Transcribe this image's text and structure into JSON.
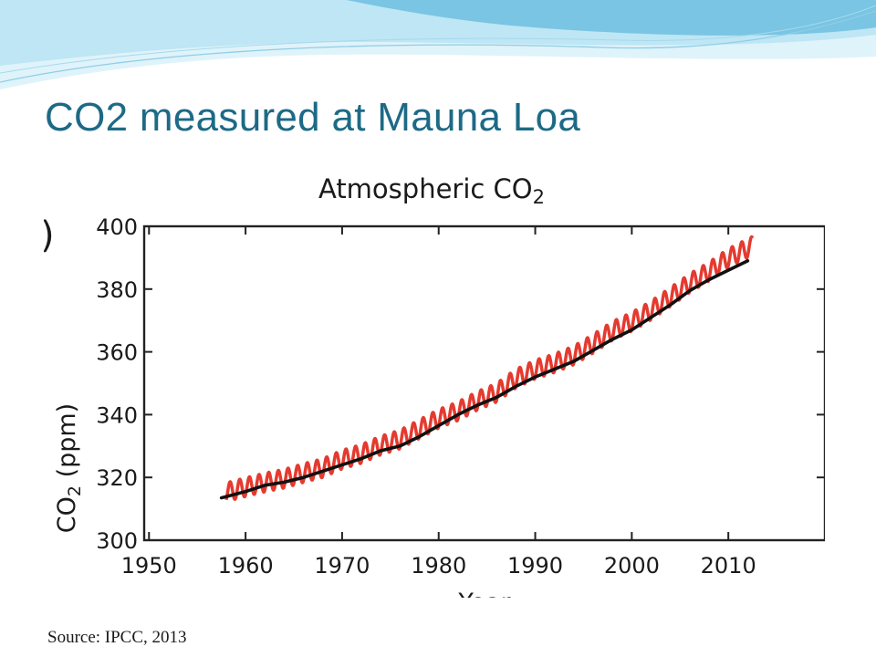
{
  "slide": {
    "title": "CO2 measured at Mauna Loa",
    "source": "Source: IPCC, 2013"
  },
  "colors": {
    "title": "#1d6a86",
    "wave_light": "#b9e3f2",
    "wave_mid": "#62b9dd",
    "monthly_series": "#e53a2f",
    "annual_series": "#111111"
  },
  "chart_data": {
    "type": "line",
    "title": "Atmospheric CO",
    "title_subscript": "2",
    "ylabel": "CO",
    "ylabel_subscript": "2",
    "ylabel_unit": " (ppm)",
    "xlabel": "Year",
    "panel_marker": ")",
    "xlim": [
      1950,
      2020
    ],
    "ylim": [
      300,
      400
    ],
    "x_ticks": [
      "1950",
      "1960",
      "1970",
      "1980",
      "1990",
      "2000",
      "2010"
    ],
    "y_ticks": [
      "300",
      "320",
      "340",
      "360",
      "380",
      "400"
    ],
    "grid": false,
    "series": [
      {
        "kind": "monthly",
        "color": "#e53a2f",
        "x": [
          1958,
          1960,
          1962,
          1964,
          1966,
          1968,
          1970,
          1972,
          1974,
          1976,
          1978,
          1980,
          1982,
          1984,
          1986,
          1988,
          1990,
          1992,
          1994,
          1996,
          1998,
          2000,
          2002,
          2004,
          2006,
          2008,
          2010,
          2012.5
        ],
        "values": [
          315.3,
          316.9,
          318.4,
          319.6,
          321.4,
          323.0,
          325.7,
          327.5,
          330.2,
          332.1,
          335.4,
          338.7,
          341.1,
          344.4,
          347.0,
          351.5,
          354.4,
          356.4,
          358.9,
          362.6,
          366.7,
          369.6,
          373.2,
          377.5,
          381.9,
          385.6,
          389.9,
          393.8
        ],
        "seasonal_amplitude_ppm": 3
      },
      {
        "kind": "annual",
        "color": "#111111",
        "x": [
          1957.5,
          1960,
          1962,
          1964,
          1966,
          1968,
          1970,
          1972,
          1974,
          1976,
          1978,
          1980,
          1982,
          1984,
          1986,
          1988,
          1990,
          1992,
          1994,
          1996,
          1998,
          2000,
          2002,
          2004,
          2006,
          2008,
          2010,
          2012
        ],
        "values": [
          313.5,
          315.5,
          317.5,
          318.5,
          320.0,
          322.0,
          324.0,
          326.0,
          328.5,
          330.0,
          333.0,
          336.5,
          340.0,
          343.0,
          345.5,
          349.0,
          352.0,
          354.5,
          357.0,
          360.5,
          364.0,
          367.0,
          371.0,
          375.0,
          379.5,
          383.0,
          386.0,
          389.0
        ]
      }
    ]
  }
}
